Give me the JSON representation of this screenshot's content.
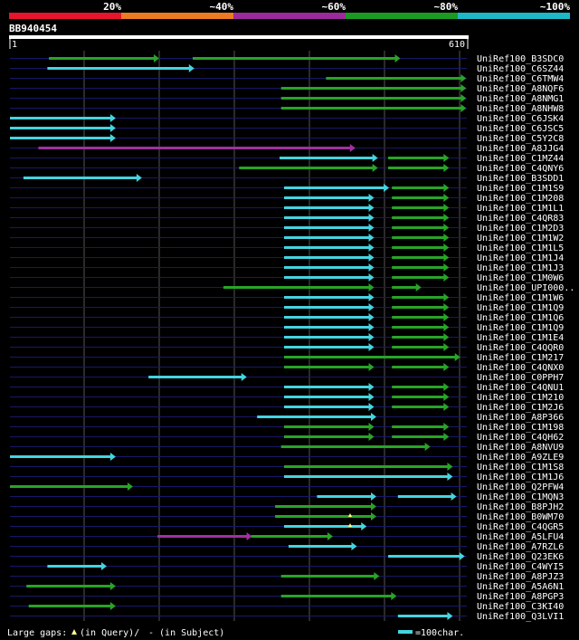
{
  "legend": {
    "identity_labels": [
      "20%",
      "~40%",
      "~60%",
      "~80%",
      "~100%"
    ],
    "identity_colors": [
      "#e8142c",
      "#ee7a22",
      "#9b2a9c",
      "#1a9a22",
      "#1cb8c8"
    ]
  },
  "query": {
    "name": "BB940454",
    "start_label": "1",
    "end_label": "610",
    "length": 610
  },
  "colors": {
    "cyan": "#44d4e0",
    "green": "#28a428",
    "magenta": "#a030a0",
    "background": "#000000",
    "grid": "#555555",
    "row_line": "#18186a"
  },
  "footer": {
    "gaps_prefix": "Large gaps: ",
    "gaps_query": "(in Query)/",
    "gaps_subject": "- (in Subject)",
    "scale_label": "=100char."
  },
  "chart_data": {
    "type": "alignment-map",
    "query_length": 610,
    "hits": [
      {
        "name": "UniRef100_B3SDC0",
        "segments": [
          {
            "start": 52,
            "end": 198,
            "color": "green"
          },
          {
            "start": 244,
            "end": 520,
            "color": "green"
          }
        ]
      },
      {
        "name": "UniRef100_C6SZ44",
        "segments": [
          {
            "start": 50,
            "end": 245,
            "color": "cyan"
          }
        ]
      },
      {
        "name": "UniRef100_C6TMW4",
        "segments": [
          {
            "start": 422,
            "end": 608,
            "color": "green"
          }
        ]
      },
      {
        "name": "UniRef100_A8NQF6",
        "segments": [
          {
            "start": 362,
            "end": 608,
            "color": "green"
          }
        ]
      },
      {
        "name": "UniRef100_A8NMG1",
        "segments": [
          {
            "start": 362,
            "end": 608,
            "color": "green"
          }
        ]
      },
      {
        "name": "UniRef100_A8NHW8",
        "segments": [
          {
            "start": 362,
            "end": 608,
            "color": "green"
          }
        ]
      },
      {
        "name": "UniRef100_C6JSK4",
        "segments": [
          {
            "start": 0,
            "end": 140,
            "color": "cyan"
          }
        ]
      },
      {
        "name": "UniRef100_C6JSC5",
        "segments": [
          {
            "start": 0,
            "end": 140,
            "color": "cyan"
          }
        ]
      },
      {
        "name": "UniRef100_C5Y2C8",
        "segments": [
          {
            "start": 0,
            "end": 140,
            "color": "cyan"
          }
        ]
      },
      {
        "name": "UniRef100_A8JJG4",
        "segments": [
          {
            "start": 38,
            "end": 460,
            "color": "magenta"
          }
        ]
      },
      {
        "name": "UniRef100_C1MZ44",
        "segments": [
          {
            "start": 360,
            "end": 490,
            "color": "cyan"
          },
          {
            "start": 505,
            "end": 585,
            "color": "green"
          }
        ]
      },
      {
        "name": "UniRef100_C4QNY6",
        "segments": [
          {
            "start": 306,
            "end": 490,
            "color": "green"
          },
          {
            "start": 505,
            "end": 585,
            "color": "green"
          }
        ]
      },
      {
        "name": "UniRef100_B3SDD1",
        "segments": [
          {
            "start": 18,
            "end": 175,
            "color": "cyan"
          }
        ]
      },
      {
        "name": "UniRef100_C1M1S9",
        "segments": [
          {
            "start": 366,
            "end": 505,
            "color": "cyan"
          },
          {
            "start": 510,
            "end": 585,
            "color": "green"
          }
        ]
      },
      {
        "name": "UniRef100_C1M208",
        "segments": [
          {
            "start": 366,
            "end": 485,
            "color": "cyan"
          },
          {
            "start": 510,
            "end": 585,
            "color": "green"
          }
        ]
      },
      {
        "name": "UniRef100_C1M1L1",
        "segments": [
          {
            "start": 366,
            "end": 485,
            "color": "cyan"
          },
          {
            "start": 510,
            "end": 585,
            "color": "green"
          }
        ]
      },
      {
        "name": "UniRef100_C4QR83",
        "segments": [
          {
            "start": 366,
            "end": 485,
            "color": "cyan"
          },
          {
            "start": 510,
            "end": 585,
            "color": "green"
          }
        ]
      },
      {
        "name": "UniRef100_C1M2D3",
        "segments": [
          {
            "start": 366,
            "end": 485,
            "color": "cyan"
          },
          {
            "start": 510,
            "end": 585,
            "color": "green"
          }
        ]
      },
      {
        "name": "UniRef100_C1M1W2",
        "segments": [
          {
            "start": 366,
            "end": 485,
            "color": "cyan"
          },
          {
            "start": 510,
            "end": 585,
            "color": "green"
          }
        ]
      },
      {
        "name": "UniRef100_C1M1L5",
        "segments": [
          {
            "start": 366,
            "end": 485,
            "color": "cyan"
          },
          {
            "start": 510,
            "end": 585,
            "color": "green"
          }
        ]
      },
      {
        "name": "UniRef100_C1M1J4",
        "segments": [
          {
            "start": 366,
            "end": 485,
            "color": "cyan"
          },
          {
            "start": 510,
            "end": 585,
            "color": "green"
          }
        ]
      },
      {
        "name": "UniRef100_C1M1J3",
        "segments": [
          {
            "start": 366,
            "end": 485,
            "color": "cyan"
          },
          {
            "start": 510,
            "end": 585,
            "color": "green"
          }
        ]
      },
      {
        "name": "UniRef100_C1M0W6",
        "segments": [
          {
            "start": 366,
            "end": 485,
            "color": "cyan"
          },
          {
            "start": 510,
            "end": 585,
            "color": "green"
          }
        ]
      },
      {
        "name": "UniRef100_UPI000..",
        "segments": [
          {
            "start": 285,
            "end": 485,
            "color": "green"
          },
          {
            "start": 510,
            "end": 548,
            "color": "green"
          }
        ]
      },
      {
        "name": "UniRef100_C1M1W6",
        "segments": [
          {
            "start": 366,
            "end": 485,
            "color": "cyan"
          },
          {
            "start": 510,
            "end": 585,
            "color": "green"
          }
        ]
      },
      {
        "name": "UniRef100_C1M1Q9",
        "segments": [
          {
            "start": 366,
            "end": 485,
            "color": "cyan"
          },
          {
            "start": 510,
            "end": 585,
            "color": "green"
          }
        ]
      },
      {
        "name": "UniRef100_C1M1Q6",
        "segments": [
          {
            "start": 366,
            "end": 485,
            "color": "cyan"
          },
          {
            "start": 510,
            "end": 585,
            "color": "green"
          }
        ]
      },
      {
        "name": "UniRef100_C1M1Q9",
        "segments": [
          {
            "start": 366,
            "end": 485,
            "color": "cyan"
          },
          {
            "start": 510,
            "end": 585,
            "color": "green"
          }
        ]
      },
      {
        "name": "UniRef100_C1M1E4",
        "segments": [
          {
            "start": 366,
            "end": 485,
            "color": "cyan"
          },
          {
            "start": 510,
            "end": 585,
            "color": "green"
          }
        ]
      },
      {
        "name": "UniRef100_C4QQR0",
        "segments": [
          {
            "start": 366,
            "end": 485,
            "color": "cyan"
          },
          {
            "start": 510,
            "end": 585,
            "color": "green"
          }
        ]
      },
      {
        "name": "UniRef100_C1M217",
        "segments": [
          {
            "start": 366,
            "end": 600,
            "color": "green"
          }
        ]
      },
      {
        "name": "UniRef100_C4QNX0",
        "segments": [
          {
            "start": 366,
            "end": 485,
            "color": "green"
          },
          {
            "start": 510,
            "end": 585,
            "color": "green"
          }
        ]
      },
      {
        "name": "UniRef100_C0PPH7",
        "segments": [
          {
            "start": 185,
            "end": 315,
            "color": "cyan"
          }
        ]
      },
      {
        "name": "UniRef100_C4QNU1",
        "segments": [
          {
            "start": 366,
            "end": 485,
            "color": "cyan"
          },
          {
            "start": 510,
            "end": 585,
            "color": "green"
          }
        ]
      },
      {
        "name": "UniRef100_C1M210",
        "segments": [
          {
            "start": 366,
            "end": 485,
            "color": "cyan"
          },
          {
            "start": 510,
            "end": 585,
            "color": "green"
          }
        ]
      },
      {
        "name": "UniRef100_C1M2J6",
        "segments": [
          {
            "start": 366,
            "end": 485,
            "color": "cyan"
          },
          {
            "start": 510,
            "end": 585,
            "color": "green"
          }
        ]
      },
      {
        "name": "UniRef100_A8P366",
        "segments": [
          {
            "start": 330,
            "end": 488,
            "color": "cyan"
          }
        ]
      },
      {
        "name": "UniRef100_C1M198",
        "segments": [
          {
            "start": 366,
            "end": 485,
            "color": "green"
          },
          {
            "start": 510,
            "end": 585,
            "color": "green"
          }
        ]
      },
      {
        "name": "UniRef100_C4QH62",
        "segments": [
          {
            "start": 366,
            "end": 485,
            "color": "green"
          },
          {
            "start": 510,
            "end": 585,
            "color": "green"
          }
        ]
      },
      {
        "name": "UniRef100_A8NVU9",
        "segments": [
          {
            "start": 362,
            "end": 560,
            "color": "green"
          }
        ]
      },
      {
        "name": "UniRef100_A9ZLE9",
        "segments": [
          {
            "start": 0,
            "end": 140,
            "color": "cyan"
          }
        ]
      },
      {
        "name": "UniRef100_C1M1S8",
        "segments": [
          {
            "start": 366,
            "end": 590,
            "color": "green"
          }
        ]
      },
      {
        "name": "UniRef100_C1M1J6",
        "segments": [
          {
            "start": 366,
            "end": 590,
            "color": "cyan"
          }
        ]
      },
      {
        "name": "UniRef100_Q2PFW4",
        "segments": [
          {
            "start": 0,
            "end": 163,
            "color": "green"
          }
        ]
      },
      {
        "name": "UniRef100_C1MQN3",
        "segments": [
          {
            "start": 410,
            "end": 488,
            "color": "cyan"
          },
          {
            "start": 518,
            "end": 595,
            "color": "cyan"
          }
        ]
      },
      {
        "name": "UniRef100_B8PJH2",
        "segments": [
          {
            "start": 354,
            "end": 488,
            "color": "green"
          }
        ]
      },
      {
        "name": "UniRef100_B0WM70",
        "segments": [
          {
            "start": 354,
            "end": 488,
            "color": "green"
          }
        ]
      },
      {
        "name": "UniRef100_C4QGR5",
        "segments": [
          {
            "start": 366,
            "end": 475,
            "color": "cyan"
          }
        ]
      },
      {
        "name": "UniRef100_A5LFU4",
        "segments": [
          {
            "start": 197,
            "end": 322,
            "color": "magenta"
          },
          {
            "start": 322,
            "end": 430,
            "color": "green"
          }
        ]
      },
      {
        "name": "UniRef100_A7RZL6",
        "segments": [
          {
            "start": 372,
            "end": 462,
            "color": "cyan"
          }
        ]
      },
      {
        "name": "UniRef100_Q23EK6",
        "segments": [
          {
            "start": 505,
            "end": 606,
            "color": "cyan"
          }
        ]
      },
      {
        "name": "UniRef100_C4WYI5",
        "segments": [
          {
            "start": 50,
            "end": 128,
            "color": "cyan"
          }
        ]
      },
      {
        "name": "UniRef100_A8PJZ3",
        "segments": [
          {
            "start": 362,
            "end": 492,
            "color": "green"
          }
        ]
      },
      {
        "name": "UniRef100_A5A6N1",
        "segments": [
          {
            "start": 22,
            "end": 140,
            "color": "green"
          }
        ]
      },
      {
        "name": "UniRef100_A8PGP3",
        "segments": [
          {
            "start": 362,
            "end": 515,
            "color": "green"
          }
        ]
      },
      {
        "name": "UniRef100_C3KI40",
        "segments": [
          {
            "start": 25,
            "end": 140,
            "color": "green"
          }
        ]
      },
      {
        "name": "UniRef100_Q3LVI1",
        "segments": [
          {
            "start": 518,
            "end": 590,
            "color": "cyan"
          }
        ]
      }
    ]
  }
}
